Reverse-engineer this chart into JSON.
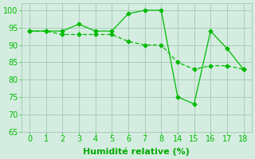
{
  "line1_x": [
    0,
    1,
    2,
    3,
    4,
    5,
    6,
    7,
    8,
    14,
    15,
    16,
    17,
    18
  ],
  "line1_y": [
    94,
    94,
    94,
    96,
    94,
    94,
    99,
    100,
    100,
    75,
    73,
    94,
    89,
    83
  ],
  "line2_y": [
    94,
    94,
    93,
    93,
    93,
    93,
    91,
    90,
    90,
    85,
    83,
    84,
    84,
    83
  ],
  "line_color": "#00bb00",
  "bg_color": "#d4ede0",
  "grid_color": "#aaccbb",
  "xlabel": "Humidité relative (%)",
  "ylim": [
    65,
    102
  ],
  "yticks": [
    65,
    70,
    75,
    80,
    85,
    90,
    95,
    100
  ],
  "xtick_labels": [
    "0",
    "1",
    "2",
    "3",
    "4",
    "5",
    "6",
    "7",
    "8",
    "14",
    "15",
    "16",
    "17",
    "18"
  ],
  "xlabel_color": "#00aa00",
  "axis_label_fontsize": 8,
  "tick_fontsize": 7
}
